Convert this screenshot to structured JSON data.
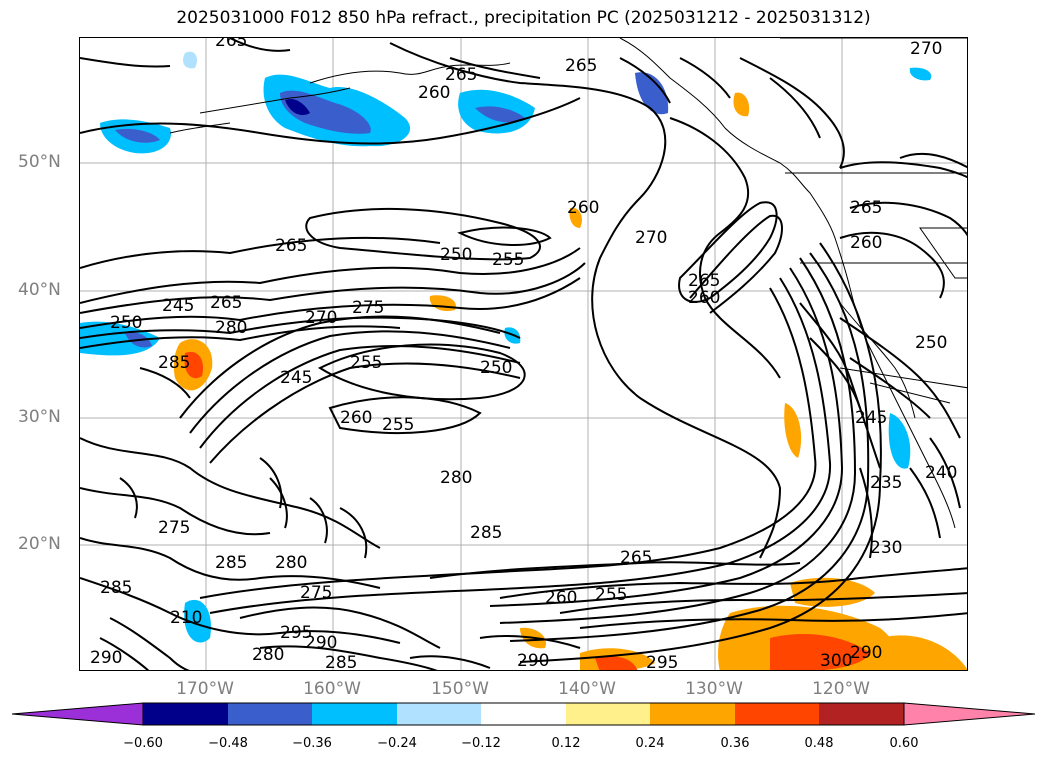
{
  "title": "2025031000 F012 850 hPa refract., precipitation PC (2025031212 - 2025031312)",
  "lat_labels": [
    "50°N",
    "40°N",
    "30°N",
    "20°N"
  ],
  "lon_labels": [
    "170°W",
    "160°W",
    "150°W",
    "140°W",
    "130°W",
    "120°W"
  ],
  "contour_labels": [
    "265",
    "265",
    "270",
    "265",
    "260",
    "260",
    "265",
    "265",
    "260",
    "250",
    "255",
    "245",
    "250",
    "265",
    "270",
    "275",
    "280",
    "285",
    "250",
    "255",
    "245",
    "260",
    "255",
    "270",
    "265",
    "260",
    "280",
    "285",
    "275",
    "280",
    "285",
    "275",
    "295",
    "290",
    "280",
    "290",
    "285",
    "290",
    "295",
    "260",
    "255",
    "265",
    "230",
    "235",
    "240",
    "245",
    "250",
    "300",
    "290",
    "210",
    "285"
  ],
  "colorbar": {
    "ticks": [
      "−0.60",
      "−0.48",
      "−0.36",
      "−0.24",
      "−0.12",
      "0.12",
      "0.24",
      "0.36",
      "0.48",
      "0.60"
    ],
    "colors": [
      "#9b30d8",
      "#00008b",
      "#3a5fcd",
      "#00bfff",
      "#b0e2ff",
      "#ffffff",
      "#fff08c",
      "#ffa500",
      "#ff4500",
      "#b22222",
      "#ff82ab"
    ]
  }
}
